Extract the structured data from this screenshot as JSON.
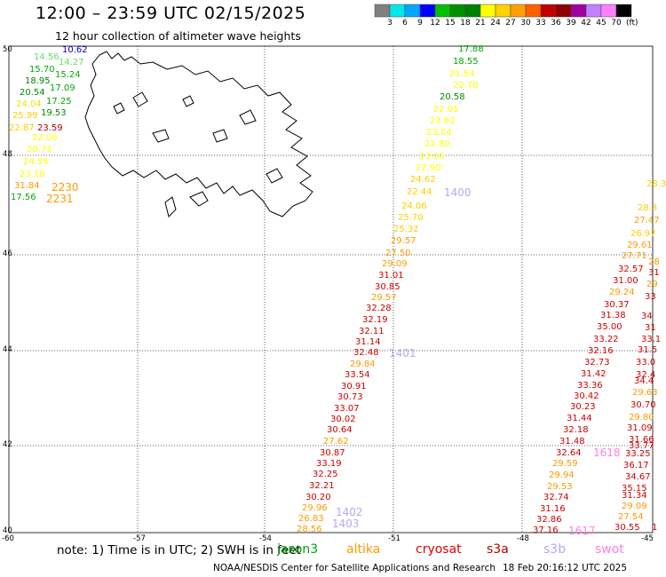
{
  "title": "12:00 – 23:59 UTC 02/15/2025",
  "subtitle": "12 hour collection of altimeter wave heights",
  "note": "note:  1) Time is in UTC;  2) SWH is in feet",
  "credit": "NOAA/NESDIS Center for Satellite Applications and Research",
  "generated": "18 Feb 20:16:12 UTC 2025",
  "colorbar": {
    "colors": [
      "#808080",
      "#00e8e8",
      "#00a8ff",
      "#0000ff",
      "#00c000",
      "#009000",
      "#008000",
      "#ffff00",
      "#ffd000",
      "#ffa000",
      "#ff6000",
      "#c00000",
      "#900000",
      "#a000a0",
      "#c080ff",
      "#ff80ff",
      "#000000"
    ],
    "labels": [
      "3",
      "6",
      "9",
      "12",
      "15",
      "18",
      "21",
      "24",
      "27",
      "30",
      "33",
      "36",
      "39",
      "42",
      "45",
      "70"
    ],
    "unit": "(ft)"
  },
  "satellites": [
    {
      "name": "jason3",
      "color": "#00a000"
    },
    {
      "name": "altika",
      "color": "#ff9900"
    },
    {
      "name": "cryosat",
      "color": "#e00000"
    },
    {
      "name": "s3a",
      "color": "#b00000"
    },
    {
      "name": "s3b",
      "color": "#b8a8f0"
    },
    {
      "name": "swot",
      "color": "#ff80e0"
    }
  ],
  "axes": {
    "lon_labels": [
      "-60",
      "-57",
      "-54",
      "-51",
      "-48",
      "-45"
    ],
    "lat_labels": [
      "50",
      "48",
      "46",
      "44",
      "42",
      "40"
    ]
  },
  "observations": [
    {
      "v": "10.62",
      "c": "#0000cc"
    },
    {
      "v": "14.56",
      "c": "#66dd66"
    },
    {
      "v": "14.27",
      "c": "#66dd66"
    },
    {
      "v": "15.70",
      "c": "#00aa00"
    },
    {
      "v": "15.24",
      "c": "#00aa00"
    },
    {
      "v": "18.95",
      "c": "#008800"
    },
    {
      "v": "17.09",
      "c": "#00aa00"
    },
    {
      "v": "20.54",
      "c": "#008800"
    },
    {
      "v": "17.25",
      "c": "#00aa00"
    },
    {
      "v": "24.04",
      "c": "#e8e800"
    },
    {
      "v": "19.53",
      "c": "#008800"
    },
    {
      "v": "25.99",
      "c": "#ffcc00"
    },
    {
      "v": "22.87",
      "c": "#ffcc00"
    },
    {
      "v": "23.59",
      "c": "#b00000"
    },
    {
      "v": "22.06",
      "c": "#ffff00"
    },
    {
      "v": "20.71",
      "c": "#ffff00"
    },
    {
      "v": "24.55",
      "c": "#ffff00"
    },
    {
      "v": "23.18",
      "c": "#ffff00"
    },
    {
      "v": "31.84",
      "c": "#ff9900"
    },
    {
      "v": "2230",
      "c": "#ff9900"
    },
    {
      "v": "17.56",
      "c": "#00aa00"
    },
    {
      "v": "2231",
      "c": "#ff9900"
    },
    {
      "v": "17.88",
      "c": "#00aa00"
    },
    {
      "v": "18.55",
      "c": "#00aa00"
    },
    {
      "v": "21.54",
      "c": "#ffff00"
    },
    {
      "v": "22.78",
      "c": "#ffff00"
    },
    {
      "v": "20.58",
      "c": "#008800"
    },
    {
      "v": "22.05",
      "c": "#ffff00"
    },
    {
      "v": "23.82",
      "c": "#ffff00"
    },
    {
      "v": "23.04",
      "c": "#ffff00"
    },
    {
      "v": "22.80",
      "c": "#ffff00"
    },
    {
      "v": "23.00",
      "c": "#ffff00"
    },
    {
      "v": "22.90",
      "c": "#ffff00"
    },
    {
      "v": "24.62",
      "c": "#ffcc00"
    },
    {
      "v": "22.44",
      "c": "#ffcc00"
    },
    {
      "v": "1400",
      "c": "#b8a8f0"
    },
    {
      "v": "24.06",
      "c": "#ffcc00"
    },
    {
      "v": "25.70",
      "c": "#ffcc00"
    },
    {
      "v": "25.32",
      "c": "#ffcc00"
    },
    {
      "v": "29.57",
      "c": "#ff9900"
    },
    {
      "v": "27.50",
      "c": "#ff9900"
    },
    {
      "v": "29.09",
      "c": "#ff9900"
    },
    {
      "v": "31.01",
      "c": "#cc0000"
    },
    {
      "v": "30.85",
      "c": "#cc0000"
    },
    {
      "v": "29.57",
      "c": "#ff9900"
    },
    {
      "v": "32.28",
      "c": "#cc0000"
    },
    {
      "v": "32.19",
      "c": "#cc0000"
    },
    {
      "v": "32.11",
      "c": "#cc0000"
    },
    {
      "v": "31.14",
      "c": "#cc0000"
    },
    {
      "v": "32.48",
      "c": "#cc0000"
    },
    {
      "v": "1401",
      "c": "#b8a8f0"
    },
    {
      "v": "29.84",
      "c": "#ff9900"
    },
    {
      "v": "33.54",
      "c": "#cc0000"
    },
    {
      "v": "30.91",
      "c": "#cc0000"
    },
    {
      "v": "30.73",
      "c": "#cc0000"
    },
    {
      "v": "33.07",
      "c": "#cc0000"
    },
    {
      "v": "30.02",
      "c": "#cc0000"
    },
    {
      "v": "30.64",
      "c": "#cc0000"
    },
    {
      "v": "27.62",
      "c": "#ff9900"
    },
    {
      "v": "30.87",
      "c": "#cc0000"
    },
    {
      "v": "33.19",
      "c": "#cc0000"
    },
    {
      "v": "32.25",
      "c": "#cc0000"
    },
    {
      "v": "32.21",
      "c": "#cc0000"
    },
    {
      "v": "30.20",
      "c": "#cc0000"
    },
    {
      "v": "29.96",
      "c": "#ff9900"
    },
    {
      "v": "26.83",
      "c": "#ff9900"
    },
    {
      "v": "1402",
      "c": "#b8a8f0"
    },
    {
      "v": "28.56",
      "c": "#ff9900"
    },
    {
      "v": "1403",
      "c": "#b8a8f0"
    },
    {
      "v": "28.3",
      "c": "#ffcc00"
    },
    {
      "v": "28.3",
      "c": "#ffcc00"
    },
    {
      "v": "27.47",
      "c": "#ff9900"
    },
    {
      "v": "26.97",
      "c": "#ffcc00"
    },
    {
      "v": "29.61",
      "c": "#ff9900"
    },
    {
      "v": "27.71",
      "c": "#ff9900"
    },
    {
      "v": "28",
      "c": "#ff9900"
    },
    {
      "v": "32.57",
      "c": "#cc0000"
    },
    {
      "v": "31",
      "c": "#cc0000"
    },
    {
      "v": "31.00",
      "c": "#cc0000"
    },
    {
      "v": "29",
      "c": "#ff9900"
    },
    {
      "v": "29.24",
      "c": "#ff9900"
    },
    {
      "v": "30.37",
      "c": "#cc0000"
    },
    {
      "v": "33",
      "c": "#cc0000"
    },
    {
      "v": "31.38",
      "c": "#cc0000"
    },
    {
      "v": "34",
      "c": "#cc0000"
    },
    {
      "v": "35.00",
      "c": "#cc0000"
    },
    {
      "v": "31",
      "c": "#cc0000"
    },
    {
      "v": "33.22",
      "c": "#cc0000"
    },
    {
      "v": "33.1",
      "c": "#cc0000"
    },
    {
      "v": "32.16",
      "c": "#cc0000"
    },
    {
      "v": "31.5",
      "c": "#cc0000"
    },
    {
      "v": "32.73",
      "c": "#cc0000"
    },
    {
      "v": "33.0",
      "c": "#cc0000"
    },
    {
      "v": "31.42",
      "c": "#cc0000"
    },
    {
      "v": "32.4",
      "c": "#cc0000"
    },
    {
      "v": "33.36",
      "c": "#cc0000"
    },
    {
      "v": "34.4",
      "c": "#cc0000"
    },
    {
      "v": "30.42",
      "c": "#cc0000"
    },
    {
      "v": "29.63",
      "c": "#ff9900"
    },
    {
      "v": "30.23",
      "c": "#cc0000"
    },
    {
      "v": "30.70",
      "c": "#cc0000"
    },
    {
      "v": "31.44",
      "c": "#cc0000"
    },
    {
      "v": "29.80",
      "c": "#ff9900"
    },
    {
      "v": "32.18",
      "c": "#cc0000"
    },
    {
      "v": "31.09",
      "c": "#cc0000"
    },
    {
      "v": "31.48",
      "c": "#cc0000"
    },
    {
      "v": "31.66",
      "c": "#cc0000"
    },
    {
      "v": "33.77",
      "c": "#cc0000"
    },
    {
      "v": "32.64",
      "c": "#cc0000"
    },
    {
      "v": "1618",
      "c": "#ff80e0"
    },
    {
      "v": "33.25",
      "c": "#cc0000"
    },
    {
      "v": "29.59",
      "c": "#ff9900"
    },
    {
      "v": "36.17",
      "c": "#cc0000"
    },
    {
      "v": "29.94",
      "c": "#ff9900"
    },
    {
      "v": "34.67",
      "c": "#cc0000"
    },
    {
      "v": "29.53",
      "c": "#ff9900"
    },
    {
      "v": "35.15",
      "c": "#cc0000"
    },
    {
      "v": "32.74",
      "c": "#cc0000"
    },
    {
      "v": "31.34",
      "c": "#cc0000"
    },
    {
      "v": "31.16",
      "c": "#cc0000"
    },
    {
      "v": "29.09",
      "c": "#ff9900"
    },
    {
      "v": "32.86",
      "c": "#cc0000"
    },
    {
      "v": "27.54",
      "c": "#ff9900"
    },
    {
      "v": "37.16",
      "c": "#cc0000"
    },
    {
      "v": "1617",
      "c": "#ff80e0"
    },
    {
      "v": "30.55",
      "c": "#cc0000"
    },
    {
      "v": "1",
      "c": "#cc0000"
    }
  ]
}
